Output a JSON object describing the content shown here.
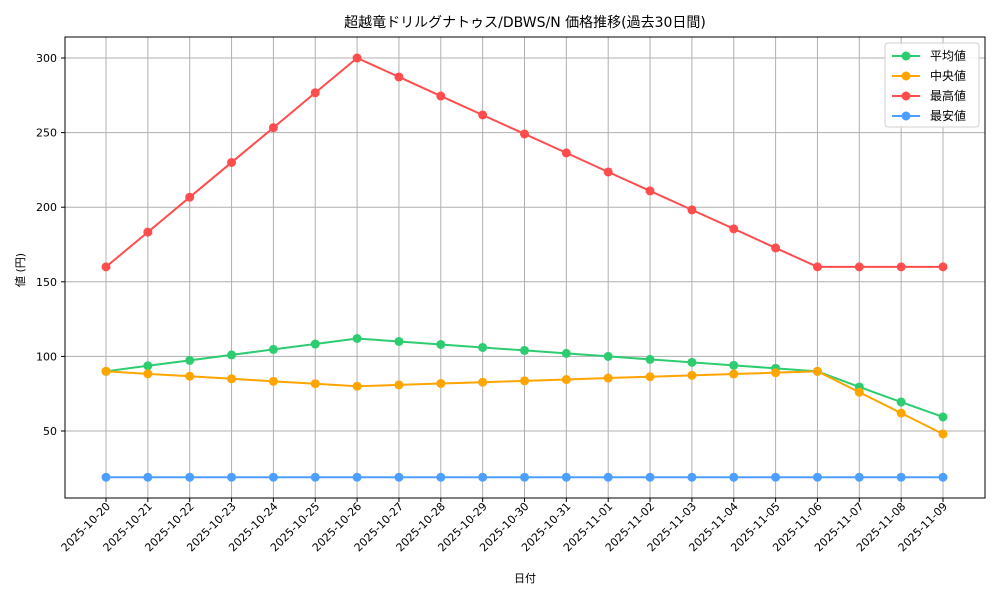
{
  "chart_data": {
    "type": "line",
    "title": "超越竜ドリルグナトゥス/DBWS/N 価格推移(過去30日間)",
    "xlabel": "日付",
    "ylabel": "値 (円)",
    "ylim": [
      10,
      313
    ],
    "yticks": [
      50,
      100,
      150,
      200,
      250,
      300
    ],
    "grid": true,
    "legend_position": "upper right",
    "categories": [
      "2025-10-20",
      "2025-10-21",
      "2025-10-22",
      "2025-10-23",
      "2025-10-24",
      "2025-10-25",
      "2025-10-26",
      "2025-10-27",
      "2025-10-28",
      "2025-10-29",
      "2025-10-30",
      "2025-10-31",
      "2025-11-01",
      "2025-11-02",
      "2025-11-03",
      "2025-11-04",
      "2025-11-05",
      "2025-11-06",
      "2025-11-07",
      "2025-11-08",
      "2025-11-09"
    ],
    "series": [
      {
        "name": "平均値",
        "color": "#2ecc71",
        "values": [
          90,
          93.7,
          97.3,
          101,
          104.7,
          108.3,
          112,
          110,
          108,
          106,
          104,
          102,
          100,
          98,
          96,
          94,
          92,
          90,
          79.5,
          69.4,
          59.4
        ]
      },
      {
        "name": "中央値",
        "color": "#ffa500",
        "values": [
          90,
          88.3,
          86.7,
          85,
          83.3,
          81.7,
          80,
          80.9,
          81.8,
          82.7,
          83.6,
          84.5,
          85.5,
          86.4,
          87.3,
          88.2,
          89.1,
          90,
          76,
          62,
          48
        ]
      },
      {
        "name": "最高値",
        "color": "#ff4d4d",
        "values": [
          160,
          183.3,
          206.7,
          230,
          253.3,
          276.7,
          300,
          287.3,
          274.5,
          261.8,
          249.1,
          236.4,
          223.6,
          210.9,
          198.2,
          185.5,
          172.7,
          160,
          160,
          160,
          160
        ]
      },
      {
        "name": "最安値",
        "color": "#4d9fff",
        "values": [
          19,
          19,
          19,
          19,
          19,
          19,
          19,
          19,
          19,
          19,
          19,
          19,
          19,
          19,
          19,
          19,
          19,
          19,
          19,
          19,
          19
        ]
      }
    ]
  }
}
